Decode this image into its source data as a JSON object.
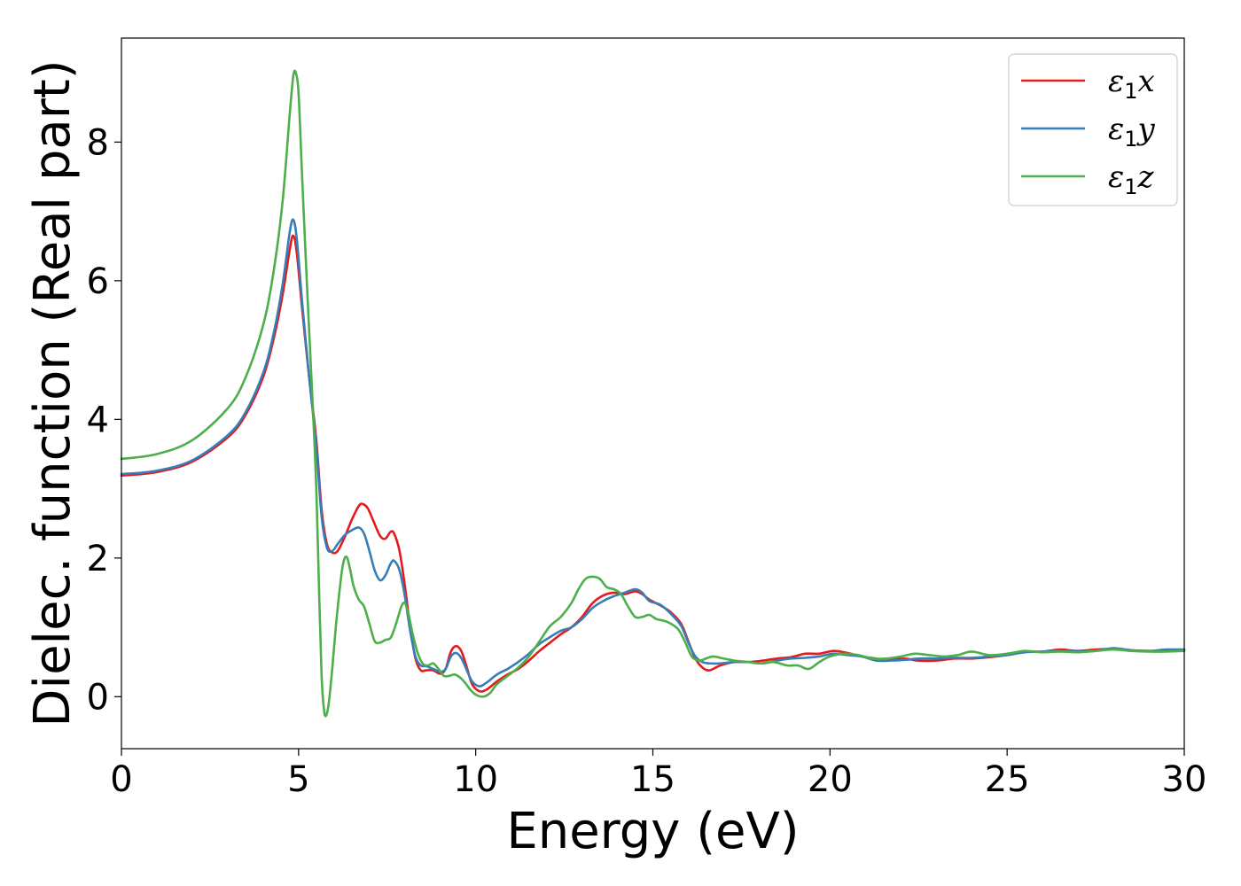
{
  "chart_data": {
    "type": "line",
    "title": "",
    "xlabel": "Energy (eV)",
    "ylabel": "Dielec. function (Real part)",
    "xlim": [
      0,
      30
    ],
    "ylim": [
      -0.75,
      9.5
    ],
    "xticks": [
      0,
      5,
      10,
      15,
      20,
      25,
      30
    ],
    "yticks": [
      0,
      2,
      4,
      6,
      8
    ],
    "grid": false,
    "legend_position": "top-right",
    "series": [
      {
        "name": "ε1x",
        "symbol": "ε",
        "subscript": "1",
        "component": "x",
        "color": "#e41a1c",
        "points": [
          [
            0,
            3.19
          ],
          [
            1,
            3.24
          ],
          [
            2,
            3.39
          ],
          [
            3,
            3.74
          ],
          [
            3.5,
            4.06
          ],
          [
            4,
            4.61
          ],
          [
            4.3,
            5.17
          ],
          [
            4.55,
            5.8
          ],
          [
            4.75,
            6.45
          ],
          [
            4.85,
            6.65
          ],
          [
            4.95,
            6.4
          ],
          [
            5.1,
            5.6
          ],
          [
            5.3,
            4.6
          ],
          [
            5.5,
            3.7
          ],
          [
            5.65,
            2.7
          ],
          [
            5.8,
            2.2
          ],
          [
            5.95,
            2.08
          ],
          [
            6.1,
            2.1
          ],
          [
            6.3,
            2.3
          ],
          [
            6.5,
            2.55
          ],
          [
            6.7,
            2.75
          ],
          [
            6.8,
            2.78
          ],
          [
            6.95,
            2.72
          ],
          [
            7.1,
            2.55
          ],
          [
            7.3,
            2.32
          ],
          [
            7.45,
            2.28
          ],
          [
            7.6,
            2.38
          ],
          [
            7.7,
            2.35
          ],
          [
            7.85,
            2.1
          ],
          [
            8.0,
            1.6
          ],
          [
            8.15,
            1.0
          ],
          [
            8.3,
            0.55
          ],
          [
            8.45,
            0.38
          ],
          [
            8.6,
            0.38
          ],
          [
            8.8,
            0.38
          ],
          [
            9.0,
            0.33
          ],
          [
            9.15,
            0.4
          ],
          [
            9.3,
            0.65
          ],
          [
            9.45,
            0.73
          ],
          [
            9.6,
            0.65
          ],
          [
            9.75,
            0.42
          ],
          [
            9.9,
            0.18
          ],
          [
            10.1,
            0.08
          ],
          [
            10.3,
            0.1
          ],
          [
            10.6,
            0.22
          ],
          [
            10.9,
            0.32
          ],
          [
            11.2,
            0.4
          ],
          [
            11.5,
            0.52
          ],
          [
            11.8,
            0.66
          ],
          [
            12.1,
            0.78
          ],
          [
            12.4,
            0.9
          ],
          [
            12.7,
            1.0
          ],
          [
            13.0,
            1.15
          ],
          [
            13.3,
            1.35
          ],
          [
            13.6,
            1.46
          ],
          [
            13.9,
            1.5
          ],
          [
            14.2,
            1.48
          ],
          [
            14.5,
            1.52
          ],
          [
            14.7,
            1.48
          ],
          [
            14.9,
            1.4
          ],
          [
            15.2,
            1.32
          ],
          [
            15.5,
            1.22
          ],
          [
            15.8,
            1.05
          ],
          [
            16.0,
            0.8
          ],
          [
            16.2,
            0.55
          ],
          [
            16.4,
            0.42
          ],
          [
            16.6,
            0.38
          ],
          [
            16.9,
            0.45
          ],
          [
            17.3,
            0.5
          ],
          [
            17.7,
            0.5
          ],
          [
            18.1,
            0.52
          ],
          [
            18.5,
            0.55
          ],
          [
            18.9,
            0.57
          ],
          [
            19.3,
            0.62
          ],
          [
            19.7,
            0.62
          ],
          [
            20.1,
            0.66
          ],
          [
            20.5,
            0.63
          ],
          [
            20.9,
            0.58
          ],
          [
            21.3,
            0.55
          ],
          [
            21.7,
            0.53
          ],
          [
            22.1,
            0.55
          ],
          [
            22.5,
            0.52
          ],
          [
            23.0,
            0.52
          ],
          [
            23.5,
            0.55
          ],
          [
            24.0,
            0.55
          ],
          [
            24.5,
            0.57
          ],
          [
            25.0,
            0.6
          ],
          [
            25.5,
            0.65
          ],
          [
            26.0,
            0.65
          ],
          [
            26.5,
            0.68
          ],
          [
            27.0,
            0.66
          ],
          [
            27.5,
            0.68
          ],
          [
            28.0,
            0.69
          ],
          [
            28.5,
            0.67
          ],
          [
            29.0,
            0.66
          ],
          [
            29.5,
            0.66
          ],
          [
            30,
            0.67
          ]
        ]
      },
      {
        "name": "ε1y",
        "symbol": "ε",
        "subscript": "1",
        "component": "y",
        "color": "#377eb8",
        "points": [
          [
            0,
            3.21
          ],
          [
            1,
            3.26
          ],
          [
            2,
            3.41
          ],
          [
            3,
            3.77
          ],
          [
            3.5,
            4.1
          ],
          [
            4,
            4.67
          ],
          [
            4.3,
            5.25
          ],
          [
            4.55,
            5.95
          ],
          [
            4.75,
            6.7
          ],
          [
            4.85,
            6.88
          ],
          [
            4.95,
            6.6
          ],
          [
            5.1,
            5.7
          ],
          [
            5.3,
            4.6
          ],
          [
            5.5,
            3.6
          ],
          [
            5.65,
            2.6
          ],
          [
            5.8,
            2.15
          ],
          [
            5.95,
            2.1
          ],
          [
            6.1,
            2.2
          ],
          [
            6.3,
            2.33
          ],
          [
            6.5,
            2.4
          ],
          [
            6.7,
            2.44
          ],
          [
            6.85,
            2.35
          ],
          [
            7.0,
            2.1
          ],
          [
            7.15,
            1.82
          ],
          [
            7.3,
            1.68
          ],
          [
            7.45,
            1.75
          ],
          [
            7.6,
            1.92
          ],
          [
            7.7,
            1.96
          ],
          [
            7.85,
            1.82
          ],
          [
            8.0,
            1.45
          ],
          [
            8.15,
            0.95
          ],
          [
            8.3,
            0.58
          ],
          [
            8.45,
            0.45
          ],
          [
            8.6,
            0.44
          ],
          [
            8.8,
            0.4
          ],
          [
            9.0,
            0.36
          ],
          [
            9.15,
            0.4
          ],
          [
            9.3,
            0.58
          ],
          [
            9.45,
            0.63
          ],
          [
            9.6,
            0.55
          ],
          [
            9.75,
            0.38
          ],
          [
            9.9,
            0.22
          ],
          [
            10.1,
            0.15
          ],
          [
            10.3,
            0.2
          ],
          [
            10.6,
            0.32
          ],
          [
            10.9,
            0.4
          ],
          [
            11.2,
            0.5
          ],
          [
            11.5,
            0.62
          ],
          [
            11.8,
            0.76
          ],
          [
            12.1,
            0.86
          ],
          [
            12.4,
            0.95
          ],
          [
            12.7,
            1.0
          ],
          [
            13.0,
            1.12
          ],
          [
            13.3,
            1.28
          ],
          [
            13.6,
            1.38
          ],
          [
            13.9,
            1.45
          ],
          [
            14.2,
            1.5
          ],
          [
            14.5,
            1.55
          ],
          [
            14.7,
            1.5
          ],
          [
            14.9,
            1.38
          ],
          [
            15.2,
            1.33
          ],
          [
            15.5,
            1.2
          ],
          [
            15.8,
            1.02
          ],
          [
            16.0,
            0.78
          ],
          [
            16.2,
            0.58
          ],
          [
            16.4,
            0.5
          ],
          [
            16.6,
            0.48
          ],
          [
            16.9,
            0.48
          ],
          [
            17.3,
            0.5
          ],
          [
            17.7,
            0.5
          ],
          [
            18.1,
            0.48
          ],
          [
            18.5,
            0.52
          ],
          [
            18.9,
            0.55
          ],
          [
            19.3,
            0.56
          ],
          [
            19.7,
            0.58
          ],
          [
            20.1,
            0.62
          ],
          [
            20.5,
            0.6
          ],
          [
            20.9,
            0.58
          ],
          [
            21.3,
            0.52
          ],
          [
            21.7,
            0.52
          ],
          [
            22.1,
            0.53
          ],
          [
            22.5,
            0.55
          ],
          [
            23.0,
            0.55
          ],
          [
            23.5,
            0.56
          ],
          [
            24.0,
            0.56
          ],
          [
            24.5,
            0.58
          ],
          [
            25.0,
            0.6
          ],
          [
            25.5,
            0.64
          ],
          [
            26.0,
            0.65
          ],
          [
            26.5,
            0.66
          ],
          [
            27.0,
            0.65
          ],
          [
            27.5,
            0.66
          ],
          [
            28.0,
            0.7
          ],
          [
            28.5,
            0.67
          ],
          [
            29.0,
            0.66
          ],
          [
            29.5,
            0.68
          ],
          [
            30,
            0.68
          ]
        ]
      },
      {
        "name": "ε1z",
        "symbol": "ε",
        "subscript": "1",
        "component": "z",
        "color": "#4daf4a",
        "points": [
          [
            0,
            3.43
          ],
          [
            1,
            3.5
          ],
          [
            2,
            3.7
          ],
          [
            3,
            4.16
          ],
          [
            3.5,
            4.6
          ],
          [
            4,
            5.36
          ],
          [
            4.3,
            6.15
          ],
          [
            4.55,
            7.15
          ],
          [
            4.75,
            8.4
          ],
          [
            4.85,
            8.95
          ],
          [
            4.92,
            9.0
          ],
          [
            5.0,
            8.7
          ],
          [
            5.1,
            7.5
          ],
          [
            5.25,
            5.8
          ],
          [
            5.4,
            4.2
          ],
          [
            5.5,
            3.0
          ],
          [
            5.58,
            1.5
          ],
          [
            5.65,
            0.3
          ],
          [
            5.72,
            -0.2
          ],
          [
            5.78,
            -0.27
          ],
          [
            5.85,
            -0.1
          ],
          [
            5.95,
            0.4
          ],
          [
            6.05,
            1.0
          ],
          [
            6.15,
            1.5
          ],
          [
            6.25,
            1.9
          ],
          [
            6.35,
            2.02
          ],
          [
            6.45,
            1.85
          ],
          [
            6.55,
            1.6
          ],
          [
            6.7,
            1.4
          ],
          [
            6.85,
            1.3
          ],
          [
            7.0,
            1.05
          ],
          [
            7.15,
            0.8
          ],
          [
            7.3,
            0.78
          ],
          [
            7.45,
            0.82
          ],
          [
            7.6,
            0.85
          ],
          [
            7.75,
            1.05
          ],
          [
            7.9,
            1.3
          ],
          [
            8.0,
            1.35
          ],
          [
            8.1,
            1.2
          ],
          [
            8.2,
            0.95
          ],
          [
            8.35,
            0.65
          ],
          [
            8.5,
            0.48
          ],
          [
            8.65,
            0.45
          ],
          [
            8.8,
            0.48
          ],
          [
            8.95,
            0.4
          ],
          [
            9.1,
            0.3
          ],
          [
            9.25,
            0.3
          ],
          [
            9.4,
            0.32
          ],
          [
            9.55,
            0.28
          ],
          [
            9.7,
            0.2
          ],
          [
            9.85,
            0.1
          ],
          [
            10.0,
            0.03
          ],
          [
            10.2,
            0.0
          ],
          [
            10.4,
            0.05
          ],
          [
            10.6,
            0.18
          ],
          [
            10.9,
            0.3
          ],
          [
            11.2,
            0.42
          ],
          [
            11.5,
            0.58
          ],
          [
            11.8,
            0.8
          ],
          [
            12.1,
            1.02
          ],
          [
            12.4,
            1.15
          ],
          [
            12.7,
            1.35
          ],
          [
            12.9,
            1.55
          ],
          [
            13.1,
            1.7
          ],
          [
            13.3,
            1.73
          ],
          [
            13.5,
            1.7
          ],
          [
            13.7,
            1.58
          ],
          [
            13.9,
            1.55
          ],
          [
            14.1,
            1.48
          ],
          [
            14.3,
            1.3
          ],
          [
            14.5,
            1.15
          ],
          [
            14.7,
            1.15
          ],
          [
            14.9,
            1.18
          ],
          [
            15.1,
            1.12
          ],
          [
            15.4,
            1.08
          ],
          [
            15.7,
            0.98
          ],
          [
            15.9,
            0.8
          ],
          [
            16.1,
            0.58
          ],
          [
            16.3,
            0.52
          ],
          [
            16.5,
            0.55
          ],
          [
            16.7,
            0.58
          ],
          [
            17.0,
            0.55
          ],
          [
            17.3,
            0.52
          ],
          [
            17.7,
            0.5
          ],
          [
            18.0,
            0.48
          ],
          [
            18.4,
            0.5
          ],
          [
            18.8,
            0.45
          ],
          [
            19.1,
            0.45
          ],
          [
            19.4,
            0.4
          ],
          [
            19.7,
            0.5
          ],
          [
            20.0,
            0.58
          ],
          [
            20.4,
            0.62
          ],
          [
            20.8,
            0.6
          ],
          [
            21.2,
            0.55
          ],
          [
            21.6,
            0.55
          ],
          [
            22.0,
            0.58
          ],
          [
            22.4,
            0.62
          ],
          [
            22.8,
            0.6
          ],
          [
            23.2,
            0.58
          ],
          [
            23.6,
            0.6
          ],
          [
            24.0,
            0.65
          ],
          [
            24.5,
            0.6
          ],
          [
            25.0,
            0.62
          ],
          [
            25.5,
            0.66
          ],
          [
            26.0,
            0.64
          ],
          [
            26.5,
            0.65
          ],
          [
            27.0,
            0.64
          ],
          [
            27.5,
            0.66
          ],
          [
            28.0,
            0.68
          ],
          [
            28.5,
            0.66
          ],
          [
            29.0,
            0.65
          ],
          [
            29.5,
            0.65
          ],
          [
            30,
            0.66
          ]
        ]
      }
    ]
  }
}
